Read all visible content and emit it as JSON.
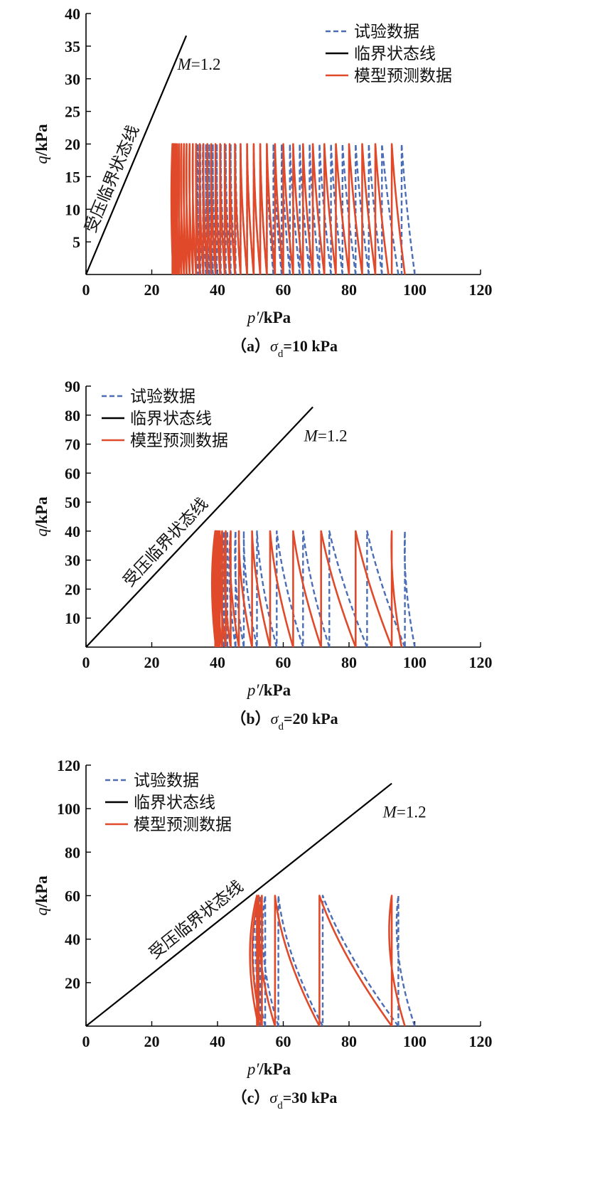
{
  "legend": {
    "test": "试验数据",
    "csl": "临界状态线",
    "model": "模型预测数据"
  },
  "colors": {
    "test": "#4a6db5",
    "model": "#e04a2a",
    "csl": "#000000",
    "axis": "#000000"
  },
  "chart_data": [
    {
      "type": "line",
      "caption": "（a）σd=10 kPa",
      "xlabel": "p′/kPa",
      "ylabel": "q/kPa",
      "xlim": [
        0,
        120
      ],
      "ylim": [
        0,
        40
      ],
      "xticks": [
        "0",
        "20",
        "40",
        "60",
        "80",
        "100",
        "120"
      ],
      "yticks": [
        "5",
        "10",
        "15",
        "20",
        "25",
        "30",
        "35",
        "40"
      ],
      "csl_label": "M=1.2",
      "region_label": "受压临界状态线",
      "legend_position": "top-right",
      "critical_state_line": {
        "slope": 1.2,
        "x": [
          0,
          30.5
        ]
      },
      "cyclic": {
        "q_max": 20,
        "test_loops": [
          [
            100,
            96
          ],
          [
            95,
            90
          ],
          [
            90,
            86
          ],
          [
            86,
            82
          ],
          [
            82,
            78
          ],
          [
            78,
            74.5
          ],
          [
            74.5,
            71
          ],
          [
            71,
            68
          ],
          [
            68,
            65
          ],
          [
            65,
            62
          ],
          [
            62,
            59.5
          ],
          [
            59.5,
            57
          ],
          [
            57,
            55
          ],
          [
            55,
            53
          ],
          [
            53,
            51
          ],
          [
            51,
            49
          ],
          [
            49,
            47
          ],
          [
            47,
            45.5
          ],
          [
            45.5,
            44
          ],
          [
            44,
            42.5
          ],
          [
            42.5,
            41
          ],
          [
            41,
            39.8
          ],
          [
            39.8,
            38.6
          ],
          [
            38.6,
            37.5
          ],
          [
            37.5,
            36.5
          ],
          [
            36.5,
            35.6
          ],
          [
            35.6,
            34.8
          ],
          [
            34.8,
            34
          ]
        ],
        "model_loops": [
          [
            97,
            93
          ],
          [
            92,
            88
          ],
          [
            88,
            84
          ],
          [
            84,
            80
          ],
          [
            80,
            76
          ],
          [
            76,
            72.5
          ],
          [
            72.5,
            69
          ],
          [
            69,
            66
          ],
          [
            66,
            63
          ],
          [
            63,
            60
          ],
          [
            60,
            57.5
          ],
          [
            57.5,
            55
          ],
          [
            55,
            53
          ],
          [
            53,
            51
          ],
          [
            51,
            49
          ],
          [
            49,
            47
          ],
          [
            47,
            45.3
          ],
          [
            45.3,
            43.7
          ],
          [
            43.7,
            42.2
          ],
          [
            42.2,
            40.8
          ],
          [
            40.8,
            39.4
          ],
          [
            39.4,
            38.1
          ],
          [
            38.1,
            36.9
          ],
          [
            36.9,
            35.7
          ],
          [
            35.7,
            34.6
          ],
          [
            34.6,
            33.5
          ],
          [
            33.5,
            32.5
          ],
          [
            32.5,
            31.5
          ],
          [
            31.5,
            30.6
          ],
          [
            30.6,
            29.8
          ],
          [
            29.8,
            29
          ],
          [
            29,
            28.3
          ],
          [
            28.3,
            27.7
          ],
          [
            27.7,
            27.2
          ],
          [
            27.2,
            26.8
          ],
          [
            26.8,
            26.5
          ],
          [
            26.5,
            26.3
          ]
        ]
      }
    },
    {
      "type": "line",
      "caption": "（b）σd=20 kPa",
      "xlabel": "p′/kPa",
      "ylabel": "q/kPa",
      "xlim": [
        0,
        120
      ],
      "ylim": [
        0,
        90
      ],
      "xticks": [
        "0",
        "20",
        "40",
        "60",
        "80",
        "100",
        "120"
      ],
      "yticks": [
        "10",
        "20",
        "30",
        "40",
        "50",
        "60",
        "70",
        "80",
        "90"
      ],
      "csl_label": "M=1.2",
      "region_label": "受压临界状态线",
      "legend_position": "top-left",
      "critical_state_line": {
        "slope": 1.2,
        "x": [
          0,
          69
        ]
      },
      "cyclic": {
        "q_max": 40,
        "test_loops": [
          [
            100,
            97
          ],
          [
            97,
            85.5
          ],
          [
            85.5,
            74
          ],
          [
            74,
            66
          ],
          [
            66,
            58
          ],
          [
            58,
            52
          ],
          [
            52,
            48
          ],
          [
            48,
            45.5
          ],
          [
            45.5,
            44
          ],
          [
            44,
            43
          ],
          [
            43,
            42.3
          ],
          [
            42.3,
            41.8
          ]
        ],
        "model_loops": [
          [
            96,
            93
          ],
          [
            93,
            82
          ],
          [
            82,
            71.5
          ],
          [
            71.5,
            63
          ],
          [
            63,
            56
          ],
          [
            56,
            50.5
          ],
          [
            50.5,
            46.5
          ],
          [
            46.5,
            44
          ],
          [
            44,
            42.5
          ],
          [
            42.5,
            41.4
          ],
          [
            41.4,
            40.7
          ],
          [
            40.7,
            40.2
          ],
          [
            40.2,
            39.8
          ],
          [
            39.8,
            39.5
          ],
          [
            39.5,
            39.3
          ]
        ]
      }
    },
    {
      "type": "line",
      "caption": "（c）σd=30 kPa",
      "xlabel": "p′/kPa",
      "ylabel": "q/kPa",
      "xlim": [
        0,
        120
      ],
      "ylim": [
        0,
        120
      ],
      "xticks": [
        "0",
        "20",
        "40",
        "60",
        "80",
        "100",
        "120"
      ],
      "yticks": [
        "20",
        "40",
        "60",
        "80",
        "100",
        "120"
      ],
      "csl_label": "M=1.2",
      "region_label": "受压临界状态线",
      "legend_position": "top-left",
      "critical_state_line": {
        "slope": 1.2,
        "x": [
          0,
          93
        ]
      },
      "cyclic": {
        "q_max": 60,
        "test_loops": [
          [
            100,
            95
          ],
          [
            95,
            72
          ],
          [
            72,
            58.5
          ],
          [
            58.5,
            54.5
          ],
          [
            54.5,
            53.5
          ],
          [
            53.5,
            53
          ]
        ],
        "model_loops": [
          [
            97,
            93
          ],
          [
            93,
            71
          ],
          [
            71,
            57.5
          ],
          [
            57.5,
            53.5
          ],
          [
            53.5,
            52.5
          ],
          [
            52.5,
            52
          ]
        ]
      }
    }
  ]
}
